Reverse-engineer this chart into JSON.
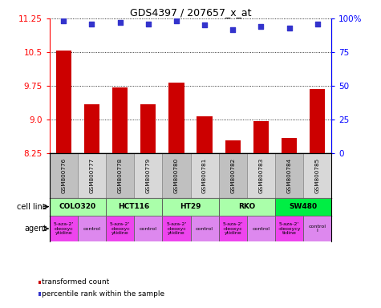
{
  "title": "GDS4397 / 207657_x_at",
  "samples": [
    "GSM800776",
    "GSM800777",
    "GSM800778",
    "GSM800779",
    "GSM800780",
    "GSM800781",
    "GSM800782",
    "GSM800783",
    "GSM800784",
    "GSM800785"
  ],
  "bar_values": [
    10.54,
    9.35,
    9.72,
    9.35,
    9.82,
    9.08,
    8.55,
    8.97,
    8.6,
    9.68
  ],
  "percentile_values": [
    98,
    96,
    97,
    96,
    98,
    95,
    92,
    94,
    93,
    96
  ],
  "ylim_left": [
    8.25,
    11.25
  ],
  "ylim_right": [
    0,
    100
  ],
  "yticks_left": [
    8.25,
    9.0,
    9.75,
    10.5,
    11.25
  ],
  "yticks_right": [
    0,
    25,
    50,
    75,
    100
  ],
  "bar_color": "#cc0000",
  "scatter_color": "#3333cc",
  "sample_bg_colors": [
    "#c0c0c0",
    "#d8d8d8",
    "#c0c0c0",
    "#d8d8d8",
    "#c0c0c0",
    "#d8d8d8",
    "#c0c0c0",
    "#d8d8d8",
    "#c0c0c0",
    "#d8d8d8"
  ],
  "cell_lines": [
    {
      "label": "COLO320",
      "start": 0,
      "end": 2,
      "color": "#aaffaa"
    },
    {
      "label": "HCT116",
      "start": 2,
      "end": 4,
      "color": "#aaffaa"
    },
    {
      "label": "HT29",
      "start": 4,
      "end": 6,
      "color": "#aaffaa"
    },
    {
      "label": "RKO",
      "start": 6,
      "end": 8,
      "color": "#aaffaa"
    },
    {
      "label": "SW480",
      "start": 8,
      "end": 10,
      "color": "#00ee44"
    }
  ],
  "agents": [
    {
      "label": "5-aza-2'\n-deoxyc\nytidine",
      "start": 0,
      "end": 1,
      "color": "#ee44ee"
    },
    {
      "label": "control",
      "start": 1,
      "end": 2,
      "color": "#dd88ee"
    },
    {
      "label": "5-aza-2'\n-deoxyc\nytidine",
      "start": 2,
      "end": 3,
      "color": "#ee44ee"
    },
    {
      "label": "control",
      "start": 3,
      "end": 4,
      "color": "#dd88ee"
    },
    {
      "label": "5-aza-2'\n-deoxyc\nytidine",
      "start": 4,
      "end": 5,
      "color": "#ee44ee"
    },
    {
      "label": "control",
      "start": 5,
      "end": 6,
      "color": "#dd88ee"
    },
    {
      "label": "5-aza-2'\n-deoxyc\nytidine",
      "start": 6,
      "end": 7,
      "color": "#ee44ee"
    },
    {
      "label": "control",
      "start": 7,
      "end": 8,
      "color": "#dd88ee"
    },
    {
      "label": "5-aza-2'\n-deoxycy\ntidine",
      "start": 8,
      "end": 9,
      "color": "#ee44ee"
    },
    {
      "label": "control\nl",
      "start": 9,
      "end": 10,
      "color": "#dd88ee"
    }
  ],
  "legend_entries": [
    {
      "label": "transformed count",
      "color": "#cc0000"
    },
    {
      "label": "percentile rank within the sample",
      "color": "#3333cc"
    }
  ],
  "cell_line_label": "cell line",
  "agent_label": "agent"
}
